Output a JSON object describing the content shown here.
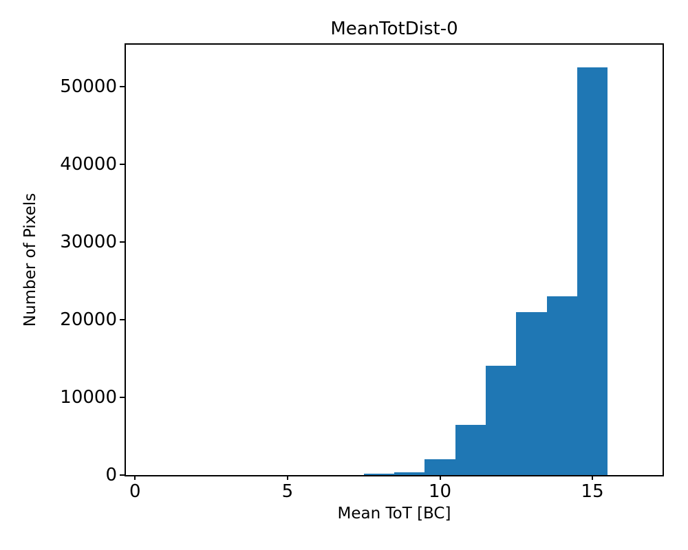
{
  "chart_data": {
    "type": "bar",
    "subtype": "histogram",
    "title": "MeanTotDist-0",
    "xlabel": "Mean ToT [BC]",
    "ylabel": "Number of Pixels",
    "bin_edges": [
      7.5,
      8.5,
      9.5,
      10.5,
      11.5,
      12.5,
      13.5,
      14.5,
      15.5
    ],
    "values": [
      150,
      400,
      2000,
      6500,
      14100,
      21000,
      23000,
      52500
    ],
    "xticks": [
      0,
      5,
      10,
      15
    ],
    "yticks": [
      0,
      10000,
      20000,
      30000,
      40000,
      50000
    ],
    "xlim": [
      -0.3,
      17.3
    ],
    "ylim": [
      0,
      55380
    ],
    "grid": false,
    "legend": null,
    "bar_color": "#1f77b4",
    "axis_color": "#000000",
    "background_color": "#ffffff"
  }
}
